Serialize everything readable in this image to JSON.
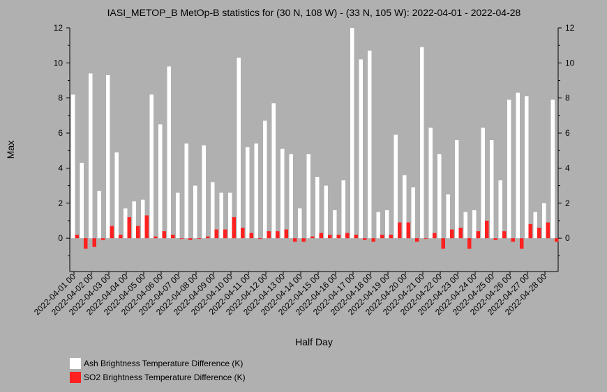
{
  "chart_data": {
    "type": "bar",
    "title": "IASI_METOP_B MetOp-B statistics for (30 N, 108 W) - (33 N, 105 W): 2022-04-01 - 2022-04-28",
    "xlabel": "Half Day",
    "ylabel": "Max",
    "ylim": [
      -1.9,
      12
    ],
    "yticks": [
      0,
      2,
      4,
      6,
      8,
      10,
      12
    ],
    "grid": false,
    "legend_position": "bottom-left",
    "x_tick_labels": [
      "2022-04-01 00",
      "2022-04-02 00",
      "2022-04-03 00",
      "2022-04-04 00",
      "2022-04-05 00",
      "2022-04-06 00",
      "2022-04-07 00",
      "2022-04-08 00",
      "2022-04-09 00",
      "2022-04-10 00",
      "2022-04-11 00",
      "2022-04-12 00",
      "2022-04-13 00",
      "2022-04-14 00",
      "2022-04-15 00",
      "2022-04-16 00",
      "2022-04-17 00",
      "2022-04-18 00",
      "2022-04-19 00",
      "2022-04-20 00",
      "2022-04-21 00",
      "2022-04-22 00",
      "2022-04-23 00",
      "2022-04-24 00",
      "2022-04-25 00",
      "2022-04-26 00",
      "2022-04-27 00",
      "2022-04-28 00"
    ],
    "series": [
      {
        "name": "Ash Brightness Temperature Difference (K)",
        "color": "#ffffff",
        "values": [
          8.2,
          4.3,
          9.4,
          2.7,
          9.3,
          4.9,
          1.7,
          2.1,
          2.2,
          8.2,
          6.5,
          9.8,
          2.6,
          5.4,
          3.0,
          5.3,
          3.2,
          2.6,
          2.6,
          10.3,
          5.2,
          5.4,
          6.7,
          7.7,
          5.1,
          4.8,
          1.7,
          4.8,
          3.5,
          3.0,
          1.6,
          3.3,
          12.0,
          10.2,
          10.7,
          1.5,
          1.6,
          5.9,
          3.6,
          2.9,
          10.9,
          6.3,
          4.8,
          2.5,
          5.6,
          1.5,
          1.6,
          6.3,
          5.6,
          3.3,
          7.9,
          8.3,
          8.1,
          1.5,
          2.0,
          7.9
        ]
      },
      {
        "name": "SO2 Brightness Temperature Difference (K)",
        "color": "#ff2020",
        "values": [
          0.2,
          -0.6,
          -0.5,
          -0.1,
          0.7,
          0.2,
          1.2,
          0.7,
          1.3,
          0.1,
          0.4,
          0.2,
          0.0,
          -0.1,
          0.0,
          0.1,
          0.5,
          0.5,
          1.2,
          0.6,
          0.3,
          0.0,
          0.4,
          0.4,
          0.5,
          -0.2,
          -0.2,
          0.1,
          0.3,
          0.2,
          0.2,
          0.3,
          0.2,
          -0.1,
          -0.2,
          0.2,
          0.2,
          0.9,
          0.9,
          -0.2,
          0.0,
          0.3,
          -0.6,
          0.5,
          0.6,
          -0.6,
          0.4,
          1.0,
          -0.1,
          0.4,
          -0.2,
          -0.6,
          0.8,
          0.6,
          0.9,
          -0.2
        ]
      }
    ]
  }
}
